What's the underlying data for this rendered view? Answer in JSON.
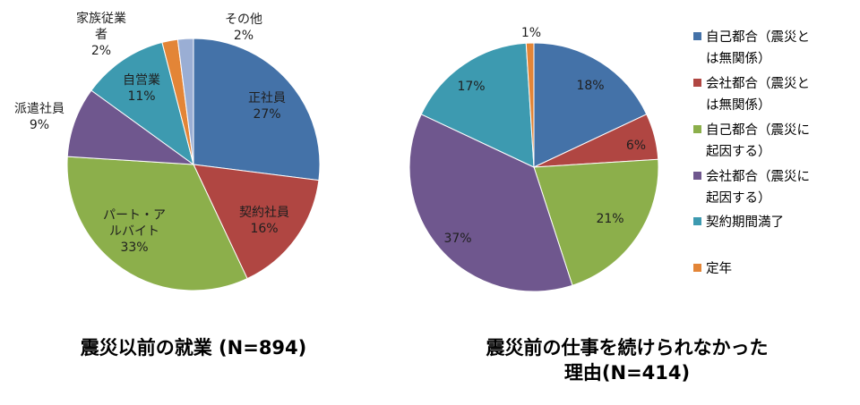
{
  "chart_data": [
    {
      "type": "pie",
      "title": "震災以前の就業 (N=894)",
      "slices": [
        {
          "label": "正社員",
          "value": 27,
          "value_label": "27%",
          "color": "#4472a8"
        },
        {
          "label": "契約社員",
          "value": 16,
          "value_label": "16%",
          "color": "#b04642"
        },
        {
          "label": "パート・アルバイト",
          "value": 33,
          "value_label": "33%",
          "color": "#8caf4b"
        },
        {
          "label": "派遣社員",
          "value": 9,
          "value_label": "9%",
          "color": "#6f578e"
        },
        {
          "label": "自営業",
          "value": 11,
          "value_label": "11%",
          "color": "#3d9ab0"
        },
        {
          "label": "家族従業者",
          "value": 2,
          "value_label": "2%",
          "color": "#e38537"
        },
        {
          "label": "その他",
          "value": 2,
          "value_label": "2%",
          "color": "#9aaed4"
        }
      ],
      "label_lines": {
        "0": [
          "正社員",
          "27%"
        ],
        "1": [
          "契約社員",
          "16%"
        ],
        "2": [
          "パート・ア",
          "ルバイト",
          "33%"
        ],
        "3": [
          "派遣社員",
          "9%"
        ],
        "4": [
          "自営業",
          "11%"
        ],
        "5": [
          "家族従業",
          "者",
          "2%"
        ],
        "6": [
          "その他",
          "2%"
        ]
      }
    },
    {
      "type": "pie",
      "title": "震災前の仕事を続けられなかった理由(N=414)",
      "title_lines": [
        "震災前の仕事を続けられなかった",
        "理由(N=414)"
      ],
      "slices": [
        {
          "label": "自己都合（震災とは無関係）",
          "value": 18,
          "value_label": "18%",
          "color": "#4472a8"
        },
        {
          "label": "会社都合（震災とは無関係）",
          "value": 6,
          "value_label": "6%",
          "color": "#b04642"
        },
        {
          "label": "自己都合（震災に起因する）",
          "value": 21,
          "value_label": "21%",
          "color": "#8caf4b"
        },
        {
          "label": "会社都合（震災に起因する）",
          "value": 37,
          "value_label": "37%",
          "color": "#6f578e"
        },
        {
          "label": "契約期間満了",
          "value": 17,
          "value_label": "17%",
          "color": "#3d9ab0"
        },
        {
          "label": "定年",
          "value": 1,
          "value_label": "1%",
          "color": "#e38537"
        }
      ],
      "legend": {
        "position": "right",
        "items": [
          {
            "lines": [
              "自己都合（震災と",
              "は無関係）"
            ],
            "color": "#4472a8"
          },
          {
            "lines": [
              "会社都合（震災と",
              "は無関係）"
            ],
            "color": "#b04642"
          },
          {
            "lines": [
              "自己都合（震災に",
              "起因する）"
            ],
            "color": "#8caf4b"
          },
          {
            "lines": [
              "会社都合（震災に",
              "起因する）"
            ],
            "color": "#6f578e"
          },
          {
            "lines": [
              "契約期間満了"
            ],
            "color": "#3d9ab0"
          },
          {
            "lines": [
              "定年"
            ],
            "color": "#e38537"
          }
        ]
      }
    }
  ]
}
